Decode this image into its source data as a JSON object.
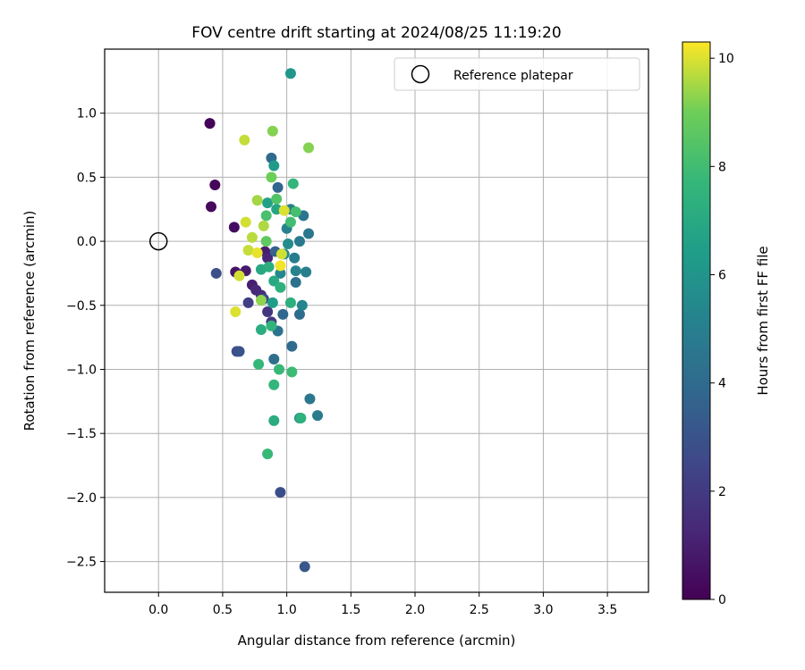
{
  "chart_data": {
    "type": "scatter",
    "title": "FOV centre drift starting at 2024/08/25 11:19:20",
    "xlabel": "Angular distance from reference (arcmin)",
    "ylabel": "Rotation from reference (arcmin)",
    "xlim": [
      -0.42,
      3.82
    ],
    "ylim": [
      -2.74,
      1.5
    ],
    "xticks": [
      0.0,
      0.5,
      1.0,
      1.5,
      2.0,
      2.5,
      3.0,
      3.5
    ],
    "yticks": [
      1.0,
      0.5,
      0.0,
      -0.5,
      -1.0,
      -1.5,
      -2.0,
      -2.5
    ],
    "xtick_labels": [
      "0.0",
      "0.5",
      "1.0",
      "1.5",
      "2.0",
      "2.5",
      "3.0",
      "3.5"
    ],
    "ytick_labels": [
      "1.0",
      "0.5",
      "0.0",
      "−0.5",
      "−1.0",
      "−1.5",
      "−2.0",
      "−2.5"
    ],
    "grid": true,
    "legend": {
      "position": "top-right",
      "entries": [
        "Reference platepar"
      ]
    },
    "reference_point": {
      "x": 0.0,
      "y": 0.0
    },
    "colorbar": {
      "label": "Hours from first FF file",
      "colormap": "viridis",
      "range": [
        0,
        10.3
      ],
      "ticks": [
        0,
        2,
        4,
        6,
        8,
        10
      ],
      "tick_labels": [
        "0",
        "2",
        "4",
        "6",
        "8",
        "10"
      ]
    },
    "points": [
      {
        "x": 0.4,
        "y": 0.92,
        "h": 0.1
      },
      {
        "x": 0.44,
        "y": 0.44,
        "h": 0.2
      },
      {
        "x": 0.41,
        "y": 0.27,
        "h": 0.3
      },
      {
        "x": 0.59,
        "y": 0.11,
        "h": 0.4
      },
      {
        "x": 0.6,
        "y": -0.24,
        "h": 0.6
      },
      {
        "x": 0.68,
        "y": -0.23,
        "h": 0.8
      },
      {
        "x": 0.73,
        "y": -0.34,
        "h": 1.0
      },
      {
        "x": 0.76,
        "y": -0.38,
        "h": 1.3
      },
      {
        "x": 0.8,
        "y": -0.42,
        "h": 1.5
      },
      {
        "x": 0.85,
        "y": -0.55,
        "h": 1.8
      },
      {
        "x": 0.88,
        "y": -0.63,
        "h": 2.0
      },
      {
        "x": 0.83,
        "y": -0.08,
        "h": 0.9
      },
      {
        "x": 0.85,
        "y": -0.13,
        "h": 1.2
      },
      {
        "x": 0.7,
        "y": -0.48,
        "h": 2.2
      },
      {
        "x": 0.82,
        "y": -0.45,
        "h": 2.5
      },
      {
        "x": 0.45,
        "y": -0.25,
        "h": 2.9
      },
      {
        "x": 0.61,
        "y": -0.86,
        "h": 2.8
      },
      {
        "x": 0.63,
        "y": -0.86,
        "h": 3.0
      },
      {
        "x": 0.95,
        "y": -1.96,
        "h": 2.8
      },
      {
        "x": 1.14,
        "y": -2.54,
        "h": 3.2
      },
      {
        "x": 0.88,
        "y": 0.65,
        "h": 4.0
      },
      {
        "x": 0.93,
        "y": 0.42,
        "h": 3.8
      },
      {
        "x": 0.91,
        "y": -0.08,
        "h": 3.6
      },
      {
        "x": 0.97,
        "y": -0.57,
        "h": 3.9
      },
      {
        "x": 1.04,
        "y": -0.82,
        "h": 4.0
      },
      {
        "x": 0.9,
        "y": -0.92,
        "h": 4.2
      },
      {
        "x": 0.93,
        "y": -0.7,
        "h": 4.4
      },
      {
        "x": 1.07,
        "y": -0.32,
        "h": 4.3
      },
      {
        "x": 1.1,
        "y": -0.57,
        "h": 4.1
      },
      {
        "x": 1.13,
        "y": 0.2,
        "h": 4.5
      },
      {
        "x": 1.17,
        "y": 0.06,
        "h": 4.6
      },
      {
        "x": 1.1,
        "y": 0.0,
        "h": 4.7
      },
      {
        "x": 1.06,
        "y": -0.13,
        "h": 4.8
      },
      {
        "x": 1.18,
        "y": -1.23,
        "h": 4.6
      },
      {
        "x": 1.24,
        "y": -1.36,
        "h": 4.8
      },
      {
        "x": 1.03,
        "y": 0.25,
        "h": 5.0
      },
      {
        "x": 1.0,
        "y": 0.1,
        "h": 5.1
      },
      {
        "x": 1.07,
        "y": -0.23,
        "h": 5.2
      },
      {
        "x": 1.15,
        "y": -0.24,
        "h": 5.0
      },
      {
        "x": 1.12,
        "y": -0.5,
        "h": 5.3
      },
      {
        "x": 0.98,
        "y": -0.1,
        "h": 5.5
      },
      {
        "x": 0.95,
        "y": -0.25,
        "h": 5.4
      },
      {
        "x": 1.01,
        "y": -0.02,
        "h": 5.6
      },
      {
        "x": 1.1,
        "y": -1.38,
        "h": 5.7
      },
      {
        "x": 1.03,
        "y": 1.31,
        "h": 6.1
      },
      {
        "x": 0.9,
        "y": 0.59,
        "h": 6.3
      },
      {
        "x": 1.05,
        "y": 0.45,
        "h": 7.6
      },
      {
        "x": 0.85,
        "y": 0.3,
        "h": 6.6
      },
      {
        "x": 0.92,
        "y": 0.25,
        "h": 6.8
      },
      {
        "x": 0.89,
        "y": -0.48,
        "h": 6.4
      },
      {
        "x": 1.03,
        "y": -0.48,
        "h": 7.3
      },
      {
        "x": 0.9,
        "y": -0.31,
        "h": 7.0
      },
      {
        "x": 0.95,
        "y": -0.36,
        "h": 7.4
      },
      {
        "x": 0.8,
        "y": -0.69,
        "h": 7.2
      },
      {
        "x": 0.88,
        "y": -0.66,
        "h": 7.5
      },
      {
        "x": 0.78,
        "y": -0.96,
        "h": 7.7
      },
      {
        "x": 0.94,
        "y": -1.0,
        "h": 7.8
      },
      {
        "x": 1.04,
        "y": -1.02,
        "h": 7.9
      },
      {
        "x": 0.9,
        "y": -1.12,
        "h": 7.6
      },
      {
        "x": 1.11,
        "y": -1.38,
        "h": 7.4
      },
      {
        "x": 0.9,
        "y": -1.4,
        "h": 7.1
      },
      {
        "x": 0.85,
        "y": -1.66,
        "h": 7.8
      },
      {
        "x": 0.8,
        "y": -0.22,
        "h": 6.9
      },
      {
        "x": 0.86,
        "y": -0.2,
        "h": 7.2
      },
      {
        "x": 0.84,
        "y": 0.2,
        "h": 8.2
      },
      {
        "x": 1.07,
        "y": 0.23,
        "h": 8.1
      },
      {
        "x": 1.03,
        "y": 0.15,
        "h": 8.0
      },
      {
        "x": 0.92,
        "y": 0.33,
        "h": 8.4
      },
      {
        "x": 0.89,
        "y": 0.86,
        "h": 9.2
      },
      {
        "x": 0.67,
        "y": 0.79,
        "h": 9.8
      },
      {
        "x": 1.17,
        "y": 0.73,
        "h": 9.2
      },
      {
        "x": 0.88,
        "y": 0.5,
        "h": 9.0
      },
      {
        "x": 0.77,
        "y": 0.32,
        "h": 9.5
      },
      {
        "x": 0.68,
        "y": 0.15,
        "h": 9.9
      },
      {
        "x": 0.82,
        "y": 0.12,
        "h": 9.6
      },
      {
        "x": 0.73,
        "y": 0.03,
        "h": 9.7
      },
      {
        "x": 0.7,
        "y": -0.07,
        "h": 9.8
      },
      {
        "x": 0.77,
        "y": -0.09,
        "h": 10.1
      },
      {
        "x": 0.96,
        "y": -0.1,
        "h": 9.9
      },
      {
        "x": 0.95,
        "y": -0.19,
        "h": 10.2
      },
      {
        "x": 0.63,
        "y": -0.27,
        "h": 9.9
      },
      {
        "x": 0.6,
        "y": -0.55,
        "h": 10.0
      },
      {
        "x": 0.84,
        "y": 0.0,
        "h": 8.7
      },
      {
        "x": 0.98,
        "y": 0.24,
        "h": 10.0
      },
      {
        "x": 0.8,
        "y": -0.46,
        "h": 9.3
      }
    ]
  }
}
